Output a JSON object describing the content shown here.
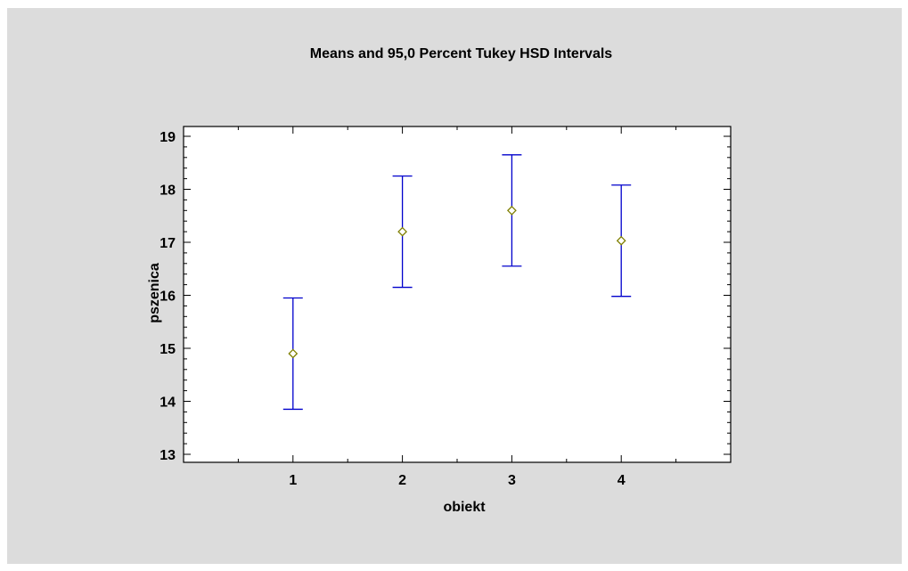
{
  "chart_data": {
    "type": "scatter",
    "title": "Means and 95,0 Percent Tukey HSD Intervals",
    "xlabel": "obiekt",
    "ylabel": "pszenica",
    "categories": [
      "1",
      "2",
      "3",
      "4"
    ],
    "xlim": [
      0,
      5
    ],
    "ylim": [
      13,
      19
    ],
    "yticks": [
      "13",
      "14",
      "15",
      "16",
      "17",
      "18",
      "19"
    ],
    "grid": false,
    "points": [
      {
        "x": "1",
        "mean": 14.9,
        "lower": 13.85,
        "upper": 15.95
      },
      {
        "x": "2",
        "mean": 17.2,
        "lower": 16.15,
        "upper": 18.25
      },
      {
        "x": "3",
        "mean": 17.6,
        "lower": 16.55,
        "upper": 18.65
      },
      {
        "x": "4",
        "mean": 17.03,
        "lower": 15.98,
        "upper": 18.08
      }
    ],
    "colors": {
      "interval": "#0000cc",
      "mean_marker": "#7f7f00",
      "background": "#dcdcdc",
      "plot_area": "#ffffff"
    }
  }
}
